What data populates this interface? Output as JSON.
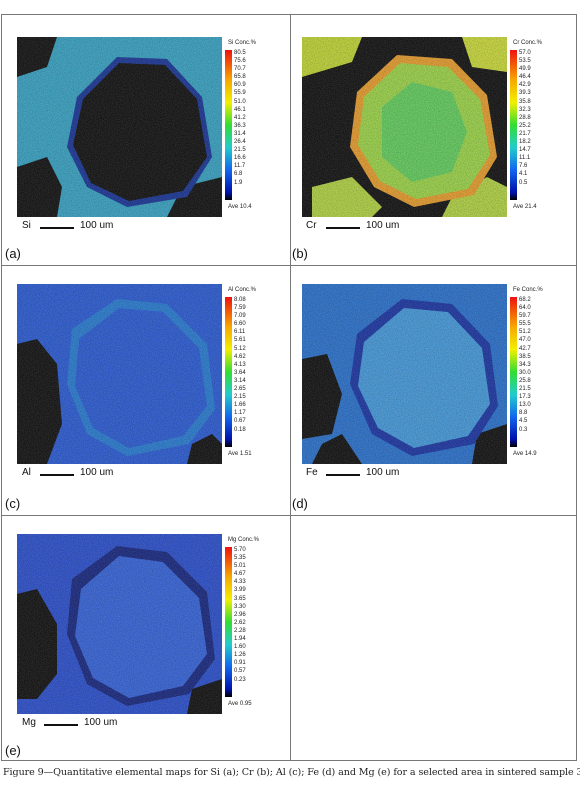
{
  "panels": [
    {
      "label": "(a)",
      "element": "Si",
      "unit": "Si Conc.%",
      "scale": "100 um",
      "ave": "Ave 10.4",
      "ticks": [
        "80.5",
        "75.6",
        "70.7",
        "65.8",
        "60.9",
        "55.9",
        "51.0",
        "46.1",
        "41.2",
        "36.3",
        "31.4",
        "26.4",
        "21.5",
        "16.6",
        "11.7",
        "6.8",
        "1.9"
      ]
    },
    {
      "label": "(b)",
      "element": "Cr",
      "unit": "Cr Conc.%",
      "scale": "100 um",
      "ave": "Ave 21.4",
      "ticks": [
        "57.0",
        "53.5",
        "49.9",
        "46.4",
        "42.9",
        "39.3",
        "35.8",
        "32.3",
        "28.8",
        "25.2",
        "21.7",
        "18.2",
        "14.7",
        "11.1",
        "7.6",
        "4.1",
        "0.5"
      ]
    },
    {
      "label": "(c)",
      "element": "Al",
      "unit": "Al Conc.%",
      "scale": "100 um",
      "ave": "Ave 1.51",
      "ticks": [
        "8.08",
        "7.59",
        "7.09",
        "6.60",
        "6.11",
        "5.61",
        "5.12",
        "4.62",
        "4.13",
        "3.64",
        "3.14",
        "2.65",
        "2.15",
        "1.66",
        "1.17",
        "0.67",
        "0.18"
      ]
    },
    {
      "label": "(d)",
      "element": "Fe",
      "unit": "Fe Conc.%",
      "scale": "100 um",
      "ave": "Ave 14.9",
      "ticks": [
        "68.2",
        "64.0",
        "59.7",
        "55.5",
        "51.2",
        "47.0",
        "42.7",
        "38.5",
        "34.3",
        "30.0",
        "25.8",
        "21.5",
        "17.3",
        "13.0",
        "8.8",
        "4.5",
        "0.3"
      ]
    },
    {
      "label": "(e)",
      "element": "Mg",
      "unit": "Mg Conc.%",
      "scale": "100 um",
      "ave": "Ave 0.95",
      "ticks": [
        "5.70",
        "5.35",
        "5.01",
        "4.67",
        "4.33",
        "3.99",
        "3.65",
        "3.30",
        "2.96",
        "2.62",
        "2.28",
        "1.94",
        "1.60",
        "1.26",
        "0.91",
        "0.57",
        "0.23"
      ]
    }
  ],
  "caption": "Figure 9—Quantitative elemental maps for Si (a); Cr (b); Al (c); Fe (d) and Mg (e) for a selected area in sintered sample 3",
  "colors": {
    "grain_dark": "#000000",
    "low": "#0b2fd6",
    "mid": "#22a0f0",
    "green": "#4fe24f",
    "yellow": "#f2e800",
    "high": "#ee2211"
  }
}
